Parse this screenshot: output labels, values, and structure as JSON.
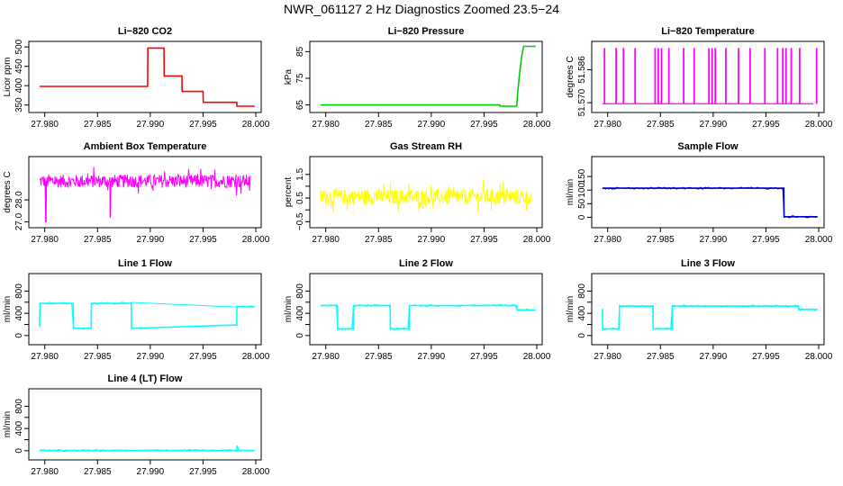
{
  "figure_title": "NWR_061127  2 Hz Diagnostics Zoomed 23.5−24",
  "chart_data": [
    {
      "type": "line",
      "title": "Li−820 CO2",
      "ylabel": "Licor ppm",
      "color": "#ff0000",
      "xlim": [
        27.979,
        28.0
      ],
      "ylim": [
        340,
        505
      ],
      "xticks": [
        27.98,
        27.985,
        27.99,
        27.995,
        28.0
      ],
      "xticklabels": [
        "27.980",
        "27.985",
        "27.990",
        "27.995",
        "28.000"
      ],
      "yticks": [
        350,
        400,
        450,
        500
      ],
      "yticklabels": [
        "350",
        "400",
        "450",
        "500"
      ],
      "x": [
        27.9795,
        27.98975,
        27.98977,
        27.9913,
        27.99132,
        27.993,
        27.99302,
        27.995,
        27.99502,
        27.9982,
        27.99822,
        27.9999
      ],
      "y": [
        398,
        398,
        497,
        497,
        425,
        425,
        385,
        385,
        357,
        357,
        347,
        347
      ]
    },
    {
      "type": "line",
      "title": "Li−820 Pressure",
      "ylabel": "kPa",
      "color": "#00cc00",
      "xlim": [
        27.979,
        28.0
      ],
      "ylim": [
        63.5,
        87.5
      ],
      "xticks": [
        27.98,
        27.985,
        27.99,
        27.995,
        28.0
      ],
      "xticklabels": [
        "27.980",
        "27.985",
        "27.990",
        "27.995",
        "28.000"
      ],
      "yticks": [
        65,
        75,
        85
      ],
      "yticklabels": [
        "65",
        "75",
        "85"
      ],
      "x": [
        27.9795,
        27.9965,
        27.99652,
        27.9981,
        27.9982,
        27.9984,
        27.9986,
        27.99875,
        27.9999
      ],
      "y": [
        65,
        65,
        64.5,
        64.5,
        70,
        78,
        84,
        87,
        87
      ]
    },
    {
      "type": "line",
      "title": "Li−820 Temperature",
      "ylabel": "degrees C",
      "color": "#ff00ff",
      "xlim": [
        27.979,
        28.0
      ],
      "ylim": [
        51.567,
        51.598
      ],
      "xticks": [
        27.98,
        27.985,
        27.99,
        27.995,
        28.0
      ],
      "xticklabels": [
        "27.980",
        "27.985",
        "27.990",
        "27.995",
        "28.000"
      ],
      "yticks": [
        51.57,
        51.586
      ],
      "yticklabels": [
        "51.570",
        "51.586"
      ],
      "spikes_x": [
        27.9797,
        27.9808,
        27.9815,
        27.9826,
        27.9845,
        27.9848,
        27.9851,
        27.9858,
        27.9872,
        27.9882,
        27.9896,
        27.9899,
        27.9902,
        27.9912,
        27.9924,
        27.9935,
        27.9949,
        27.9961,
        27.9966,
        27.9969,
        27.9974,
        27.9982,
        27.9998
      ],
      "low": 51.5695,
      "high": 51.5965
    },
    {
      "type": "line",
      "title": "Ambient Box Temperature",
      "ylabel": "degrees C",
      "color": "#ff00ff",
      "xlim": [
        27.979,
        28.0
      ],
      "ylim": [
        26.9,
        29.8
      ],
      "xticks": [
        27.98,
        27.985,
        27.99,
        27.995,
        28.0
      ],
      "xticklabels": [
        "27.980",
        "27.985",
        "27.990",
        "27.995",
        "28.000"
      ],
      "yticks": [
        27.0,
        28.0
      ],
      "yticklabels": [
        "27.0",
        "28.0"
      ],
      "noise_center": 28.85,
      "noise_amp": 0.6,
      "dips": [
        {
          "x": 27.9801,
          "y": 27.0
        },
        {
          "x": 27.9862,
          "y": 27.2
        }
      ]
    },
    {
      "type": "line",
      "title": "Gas Stream RH",
      "ylabel": "percent",
      "color": "#ffff00",
      "xlim": [
        27.979,
        28.0
      ],
      "ylim": [
        -0.6,
        2.1
      ],
      "xticks": [
        27.98,
        27.985,
        27.99,
        27.995,
        28.0
      ],
      "xticklabels": [
        "27.980",
        "27.985",
        "27.990",
        "27.995",
        "28.000"
      ],
      "yticks": [
        -0.5,
        0.0,
        0.5,
        1.0,
        1.5
      ],
      "yticklabels": [
        "−0.5",
        "0.5",
        "1.5"
      ],
      "yticklabel_values": [
        -0.5,
        0.5,
        1.5
      ],
      "noise_center": 0.55,
      "noise_amp": 0.65
    },
    {
      "type": "line",
      "title": "Sample Flow",
      "ylabel": "ml/min",
      "color": "#0000cc",
      "xlim": [
        27.979,
        28.0
      ],
      "ylim": [
        -25,
        210
      ],
      "xticks": [
        27.98,
        27.985,
        27.99,
        27.995,
        28.0
      ],
      "xticklabels": [
        "27.980",
        "27.985",
        "27.990",
        "27.995",
        "28.000"
      ],
      "yticks": [
        0,
        50,
        100,
        150
      ],
      "yticklabels": [
        "0",
        "50",
        "100",
        "150"
      ],
      "x": [
        27.9795,
        27.9967,
        27.99672,
        27.9999
      ],
      "y": [
        107,
        107,
        2,
        2
      ]
    },
    {
      "type": "line",
      "title": "Line 1 Flow",
      "ylabel": "ml/min",
      "color": "#00ffff",
      "xlim": [
        27.979,
        28.0
      ],
      "ylim": [
        -100,
        1050
      ],
      "xticks": [
        27.98,
        27.985,
        27.99,
        27.995,
        28.0
      ],
      "xticklabels": [
        "27.980",
        "27.985",
        "27.990",
        "27.995",
        "28.000"
      ],
      "yticks": [
        0,
        200,
        400,
        600,
        800
      ],
      "yticklabels": [
        "0",
        "400",
        "800"
      ],
      "yticklabel_values": [
        0,
        400,
        800
      ],
      "x": [
        27.9795,
        27.97955,
        27.9827,
        27.98272,
        27.9844,
        27.98442,
        27.9882,
        27.98822,
        27.9982,
        27.99822,
        27.9999
      ],
      "y": [
        150,
        580,
        580,
        130,
        130,
        580,
        580,
        130,
        190,
        520,
        520
      ]
    },
    {
      "type": "line",
      "title": "Line 2 Flow",
      "ylabel": "ml/min",
      "color": "#00ffff",
      "xlim": [
        27.979,
        28.0
      ],
      "ylim": [
        -100,
        1050
      ],
      "xticks": [
        27.98,
        27.985,
        27.99,
        27.995,
        28.0
      ],
      "xticklabels": [
        "27.980",
        "27.985",
        "27.990",
        "27.995",
        "28.000"
      ],
      "yticks": [
        0,
        200,
        400,
        600,
        800
      ],
      "yticklabels": [
        "0",
        "400",
        "800"
      ],
      "yticklabel_values": [
        0,
        400,
        800
      ],
      "x": [
        27.9795,
        27.9811,
        27.98112,
        27.9826,
        27.98262,
        27.9861,
        27.98612,
        27.9879,
        27.98792,
        27.9981,
        27.99812,
        27.9999
      ],
      "y": [
        540,
        540,
        120,
        120,
        540,
        540,
        120,
        120,
        540,
        540,
        460,
        460
      ]
    },
    {
      "type": "line",
      "title": "Line 3 Flow",
      "ylabel": "ml/min",
      "color": "#00ffff",
      "xlim": [
        27.979,
        28.0
      ],
      "ylim": [
        -100,
        1050
      ],
      "xticks": [
        27.98,
        27.985,
        27.99,
        27.995,
        28.0
      ],
      "xticklabels": [
        "27.980",
        "27.985",
        "27.990",
        "27.995",
        "28.000"
      ],
      "yticks": [
        0,
        200,
        400,
        600,
        800
      ],
      "yticklabels": [
        "0",
        "400",
        "800"
      ],
      "yticklabel_values": [
        0,
        400,
        800
      ],
      "x": [
        27.9795,
        27.97952,
        27.9811,
        27.98112,
        27.9843,
        27.98432,
        27.9861,
        27.98612,
        27.9981,
        27.99812,
        27.9999
      ],
      "y": [
        480,
        120,
        120,
        530,
        530,
        120,
        120,
        530,
        530,
        470,
        470
      ]
    },
    {
      "type": "line",
      "title": "Line 4 (LT) Flow",
      "ylabel": "ml/min",
      "color": "#00ffff",
      "xlim": [
        27.979,
        28.0
      ],
      "ylim": [
        -100,
        1050
      ],
      "xticks": [
        27.98,
        27.985,
        27.99,
        27.995,
        28.0
      ],
      "xticklabels": [
        "27.980",
        "27.985",
        "27.990",
        "27.995",
        "28.000"
      ],
      "yticks": [
        0,
        200,
        400,
        600,
        800
      ],
      "yticklabels": [
        "0",
        "400",
        "800"
      ],
      "yticklabel_values": [
        0,
        400,
        800
      ],
      "x": [
        27.9795,
        27.9982,
        27.99822,
        27.99835,
        27.99845,
        27.9999
      ],
      "y": [
        5,
        5,
        90,
        20,
        5,
        5
      ]
    }
  ]
}
